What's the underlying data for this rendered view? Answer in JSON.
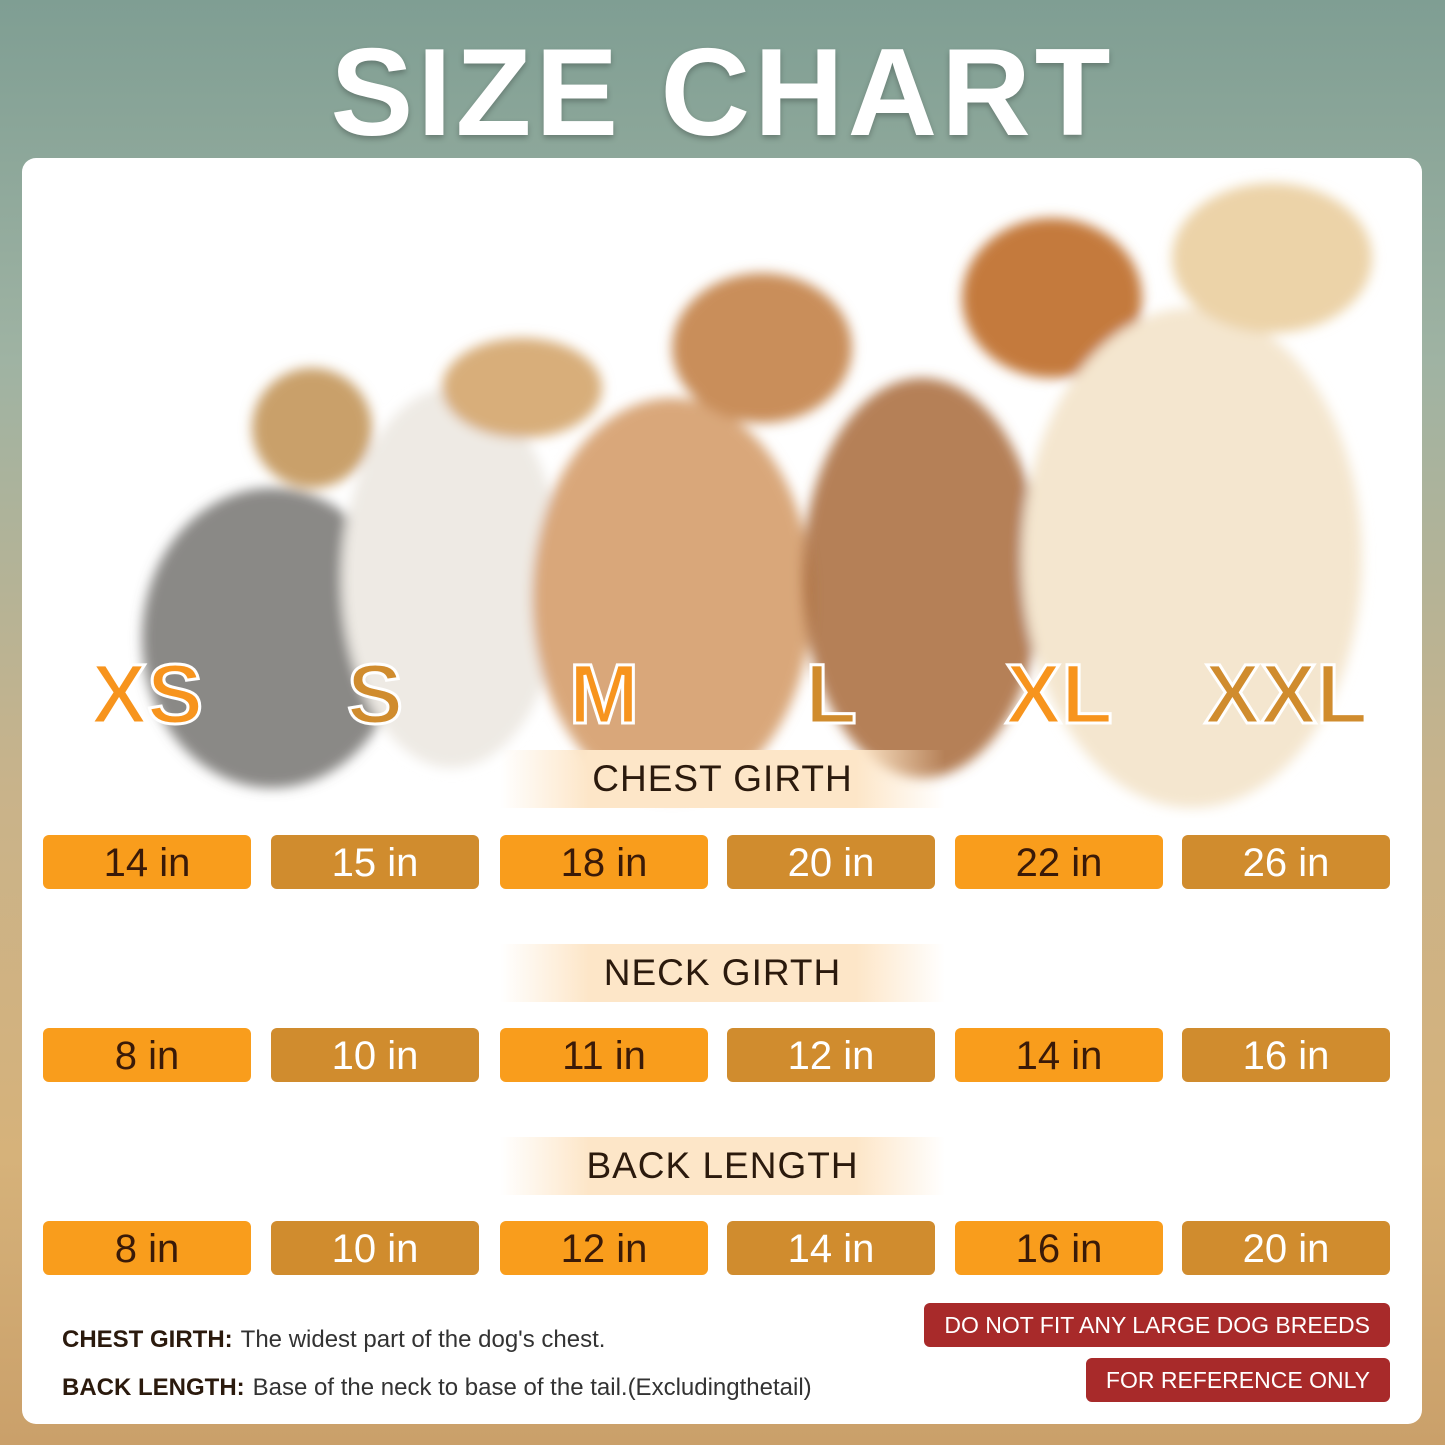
{
  "title": "SIZE CHART",
  "colors": {
    "orange": "#f99d1c",
    "ochre": "#d08c2e",
    "warning": "#a82a2a"
  },
  "sizes": [
    "XS",
    "S",
    "M",
    "L",
    "XL",
    "XXL"
  ],
  "rows": [
    {
      "label": "CHEST GIRTH",
      "values": [
        "14 in",
        "15 in",
        "18 in",
        "20 in",
        "22 in",
        "26 in"
      ]
    },
    {
      "label": "NECK GIRTH",
      "values": [
        "8 in",
        "10 in",
        "11 in",
        "12 in",
        "14 in",
        "16 in"
      ]
    },
    {
      "label": "BACK LENGTH",
      "values": [
        "8 in",
        "10 in",
        "12 in",
        "14 in",
        "16 in",
        "20 in"
      ]
    }
  ],
  "notes": [
    {
      "term": "CHEST GIRTH:",
      "desc": "The widest part of the dog's chest."
    },
    {
      "term": "BACK LENGTH:",
      "desc": "Base of the neck to base of the tail.(Excludingthetail)"
    }
  ],
  "warnings": [
    "DO NOT FIT ANY LARGE DOG BREEDS",
    "FOR REFERENCE ONLY"
  ]
}
